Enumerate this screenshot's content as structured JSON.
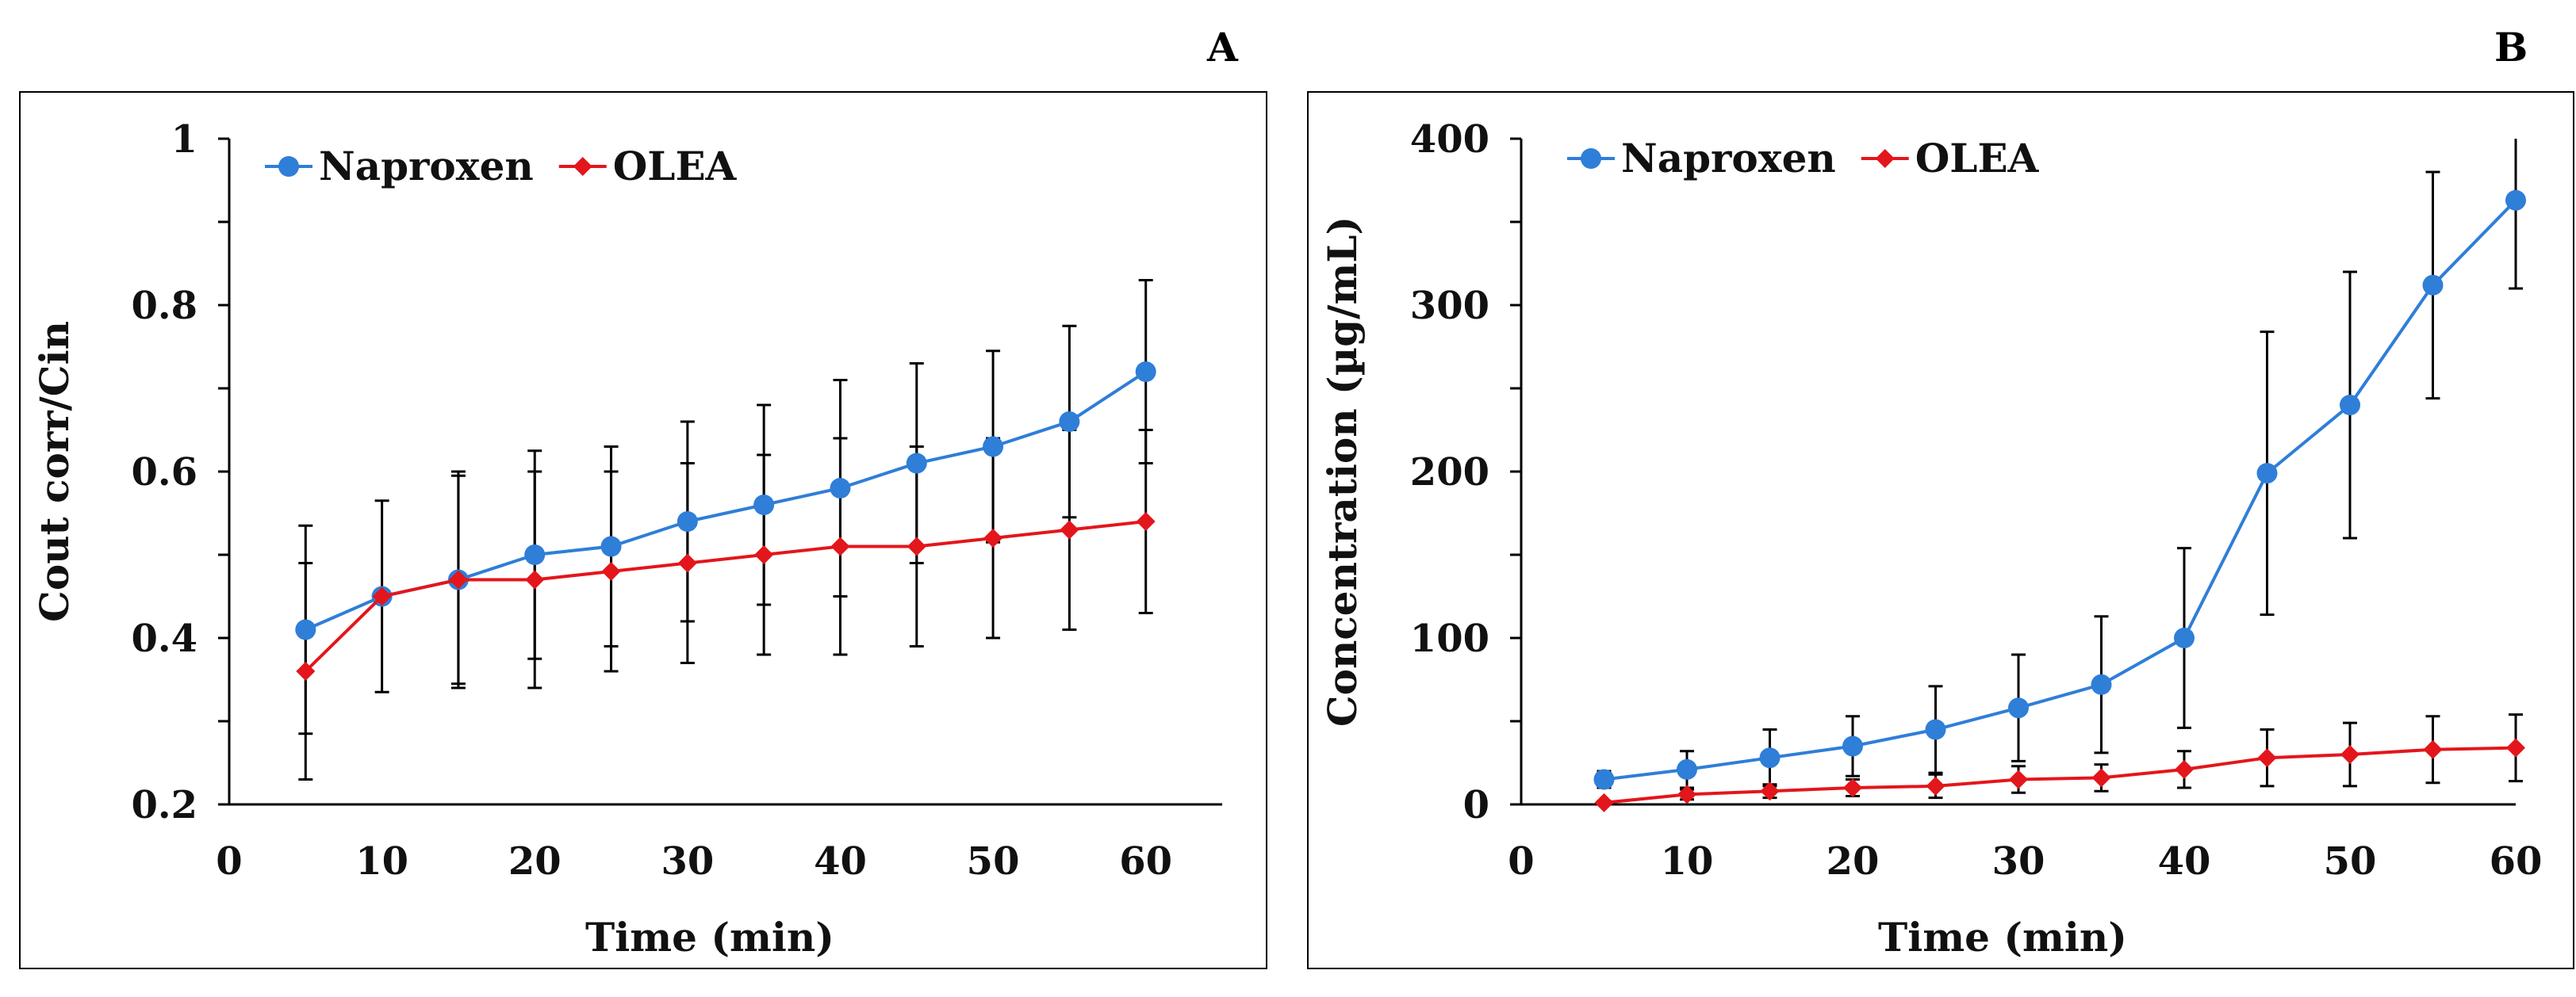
{
  "colors": {
    "naproxen": "#2F7ED8",
    "olea": "#E3161B",
    "error": "#000000",
    "axis": "#000000"
  },
  "chart_data": [
    {
      "panel": "A",
      "type": "line",
      "xlabel": "Time (min)",
      "ylabel": "Cout corr/Cin",
      "xlim": [
        0,
        65
      ],
      "ylim": [
        0.2,
        1.0
      ],
      "xticks": [
        0,
        10,
        20,
        30,
        40,
        50,
        60
      ],
      "xtick_labels": [
        "0",
        "10",
        "20",
        "30",
        "40",
        "50",
        "60"
      ],
      "yticks": [
        0.2,
        0.4,
        0.6,
        0.8,
        1.0
      ],
      "ytick_labels": [
        "0.2",
        "0.4",
        "0.6",
        "0.8",
        "1"
      ],
      "legend_position": "top-left",
      "x": [
        5,
        10,
        15,
        20,
        25,
        30,
        35,
        40,
        45,
        50,
        55,
        60
      ],
      "series": [
        {
          "name": "Naproxen",
          "marker": "circle",
          "color": "#2F7ED8",
          "values": [
            0.41,
            0.45,
            0.47,
            0.5,
            0.51,
            0.54,
            0.56,
            0.58,
            0.61,
            0.63,
            0.66,
            0.72
          ],
          "error": [
            0.125,
            0.115,
            0.125,
            0.125,
            0.12,
            0.12,
            0.12,
            0.13,
            0.12,
            0.115,
            0.115,
            0.11
          ]
        },
        {
          "name": "OLEA",
          "marker": "diamond",
          "color": "#E3161B",
          "values": [
            0.36,
            0.45,
            0.47,
            0.47,
            0.48,
            0.49,
            0.5,
            0.51,
            0.51,
            0.52,
            0.53,
            0.54
          ],
          "error": [
            0.13,
            0,
            0.13,
            0.13,
            0.12,
            0.12,
            0.12,
            0.13,
            0.12,
            0.12,
            0.12,
            0.11
          ]
        }
      ]
    },
    {
      "panel": "B",
      "type": "line",
      "xlabel": "Time (min)",
      "ylabel": "Concentration (µg/mL)",
      "xlim": [
        0,
        60
      ],
      "ylim": [
        0,
        400
      ],
      "xticks": [
        0,
        10,
        20,
        30,
        40,
        50,
        60
      ],
      "xtick_labels": [
        "0",
        "10",
        "20",
        "30",
        "40",
        "50",
        "60"
      ],
      "yticks": [
        0,
        100,
        200,
        300,
        400
      ],
      "ytick_labels": [
        "0",
        "100",
        "200",
        "300",
        "400"
      ],
      "legend_position": "top-left",
      "x": [
        5,
        10,
        15,
        20,
        25,
        30,
        35,
        40,
        45,
        50,
        55,
        60
      ],
      "series": [
        {
          "name": "Naproxen",
          "marker": "circle",
          "color": "#2F7ED8",
          "values": [
            15,
            21,
            28,
            35,
            45,
            58,
            72,
            100,
            199,
            240,
            312,
            363
          ],
          "error": [
            5,
            11,
            17,
            18,
            26,
            32,
            41,
            54,
            85,
            80,
            68,
            53
          ]
        },
        {
          "name": "OLEA",
          "marker": "diamond",
          "color": "#E3161B",
          "values": [
            1,
            6,
            8,
            10,
            11,
            15,
            16,
            21,
            28,
            30,
            33,
            34
          ],
          "error": [
            1,
            3,
            4,
            5,
            7,
            8,
            8,
            11,
            17,
            19,
            20,
            20
          ]
        }
      ]
    }
  ]
}
